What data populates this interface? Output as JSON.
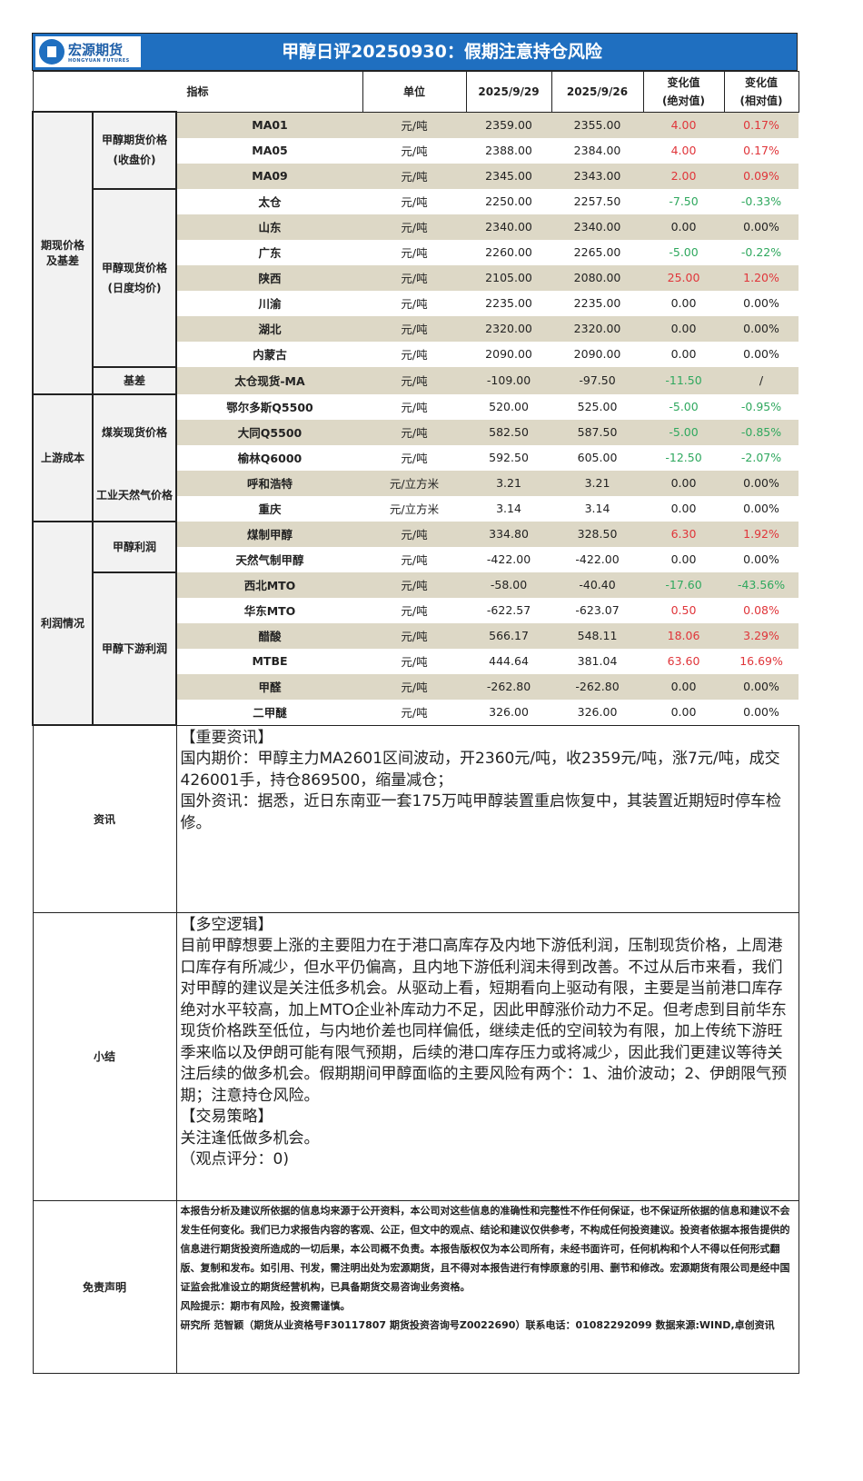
{
  "header": {
    "logo_cn": "宏源期货",
    "logo_en": "HONGYUAN FUTURES",
    "title": "甲醇日评20250930：假期注意持仓风险"
  },
  "columns": {
    "indicator": "指标",
    "unit": "单位",
    "date1": "2025/9/29",
    "date2": "2025/9/26",
    "abs": "变化值\n(绝对值)",
    "rel": "变化值\n(相对值)"
  },
  "groups": [
    {
      "label": "期现价格\n及基差",
      "span": 11
    },
    {
      "label": "上游成本",
      "span": 5
    },
    {
      "label": "利润情况",
      "span": 8
    }
  ],
  "subgroups": [
    {
      "label": "甲醇期货价格\n(收盘价)",
      "span": 3
    },
    {
      "label": "甲醇现货价格\n(日度均价)",
      "span": 7
    },
    {
      "label": "基差",
      "span": 1
    },
    {
      "label": "煤炭现货价格",
      "span": 3
    },
    {
      "label": "工业天然气价格",
      "span": 2
    },
    {
      "label": "甲醇利润",
      "span": 2
    },
    {
      "label": "甲醇下游利润",
      "span": 6
    }
  ],
  "rows": [
    {
      "name": "MA01",
      "unit": "元/吨",
      "v1": "2359.00",
      "v2": "2355.00",
      "abs": "4.00",
      "rel": "0.17%",
      "dir": "up"
    },
    {
      "name": "MA05",
      "unit": "元/吨",
      "v1": "2388.00",
      "v2": "2384.00",
      "abs": "4.00",
      "rel": "0.17%",
      "dir": "up"
    },
    {
      "name": "MA09",
      "unit": "元/吨",
      "v1": "2345.00",
      "v2": "2343.00",
      "abs": "2.00",
      "rel": "0.09%",
      "dir": "up"
    },
    {
      "name": "太仓",
      "unit": "元/吨",
      "v1": "2250.00",
      "v2": "2257.50",
      "abs": "-7.50",
      "rel": "-0.33%",
      "dir": "down"
    },
    {
      "name": "山东",
      "unit": "元/吨",
      "v1": "2340.00",
      "v2": "2340.00",
      "abs": "0.00",
      "rel": "0.00%",
      "dir": "flat"
    },
    {
      "name": "广东",
      "unit": "元/吨",
      "v1": "2260.00",
      "v2": "2265.00",
      "abs": "-5.00",
      "rel": "-0.22%",
      "dir": "down"
    },
    {
      "name": "陕西",
      "unit": "元/吨",
      "v1": "2105.00",
      "v2": "2080.00",
      "abs": "25.00",
      "rel": "1.20%",
      "dir": "up"
    },
    {
      "name": "川渝",
      "unit": "元/吨",
      "v1": "2235.00",
      "v2": "2235.00",
      "abs": "0.00",
      "rel": "0.00%",
      "dir": "flat"
    },
    {
      "name": "湖北",
      "unit": "元/吨",
      "v1": "2320.00",
      "v2": "2320.00",
      "abs": "0.00",
      "rel": "0.00%",
      "dir": "flat"
    },
    {
      "name": "内蒙古",
      "unit": "元/吨",
      "v1": "2090.00",
      "v2": "2090.00",
      "abs": "0.00",
      "rel": "0.00%",
      "dir": "flat"
    },
    {
      "name": "太仓现货-MA",
      "unit": "元/吨",
      "v1": "-109.00",
      "v2": "-97.50",
      "abs": "-11.50",
      "rel": "/",
      "dir": "down"
    },
    {
      "name": "鄂尔多斯Q5500",
      "unit": "元/吨",
      "v1": "520.00",
      "v2": "525.00",
      "abs": "-5.00",
      "rel": "-0.95%",
      "dir": "down"
    },
    {
      "name": "大同Q5500",
      "unit": "元/吨",
      "v1": "582.50",
      "v2": "587.50",
      "abs": "-5.00",
      "rel": "-0.85%",
      "dir": "down"
    },
    {
      "name": "榆林Q6000",
      "unit": "元/吨",
      "v1": "592.50",
      "v2": "605.00",
      "abs": "-12.50",
      "rel": "-2.07%",
      "dir": "down"
    },
    {
      "name": "呼和浩特",
      "unit": "元/立方米",
      "v1": "3.21",
      "v2": "3.21",
      "abs": "0.00",
      "rel": "0.00%",
      "dir": "flat"
    },
    {
      "name": "重庆",
      "unit": "元/立方米",
      "v1": "3.14",
      "v2": "3.14",
      "abs": "0.00",
      "rel": "0.00%",
      "dir": "flat"
    },
    {
      "name": "煤制甲醇",
      "unit": "元/吨",
      "v1": "334.80",
      "v2": "328.50",
      "abs": "6.30",
      "rel": "1.92%",
      "dir": "up"
    },
    {
      "name": "天然气制甲醇",
      "unit": "元/吨",
      "v1": "-422.00",
      "v2": "-422.00",
      "abs": "0.00",
      "rel": "0.00%",
      "dir": "flat"
    },
    {
      "name": "西北MTO",
      "unit": "元/吨",
      "v1": "-58.00",
      "v2": "-40.40",
      "abs": "-17.60",
      "rel": "-43.56%",
      "dir": "down"
    },
    {
      "name": "华东MTO",
      "unit": "元/吨",
      "v1": "-622.57",
      "v2": "-623.07",
      "abs": "0.50",
      "rel": "0.08%",
      "dir": "up"
    },
    {
      "name": "醋酸",
      "unit": "元/吨",
      "v1": "566.17",
      "v2": "548.11",
      "abs": "18.06",
      "rel": "3.29%",
      "dir": "up"
    },
    {
      "name": "MTBE",
      "unit": "元/吨",
      "v1": "444.64",
      "v2": "381.04",
      "abs": "63.60",
      "rel": "16.69%",
      "dir": "up"
    },
    {
      "name": "甲醛",
      "unit": "元/吨",
      "v1": "-262.80",
      "v2": "-262.80",
      "abs": "0.00",
      "rel": "0.00%",
      "dir": "flat"
    },
    {
      "name": "二甲醚",
      "unit": "元/吨",
      "v1": "326.00",
      "v2": "326.00",
      "abs": "0.00",
      "rel": "0.00%",
      "dir": "flat"
    }
  ],
  "colors": {
    "up": "#e0353a",
    "down": "#2fa85e",
    "shade": "#ddd8c6",
    "brand": "#1f6fc0"
  },
  "news": {
    "label": "资讯",
    "text": "【重要资讯】\n国内期价：甲醇主力MA2601区间波动，开2360元/吨，收2359元/吨，涨7元/吨，成交426001手，持仓869500，缩量减仓；\n国外资讯：据悉，近日东南亚一套175万吨甲醇装置重启恢复中，其装置近期短时停车检修。"
  },
  "summary": {
    "label": "小结",
    "text": "【多空逻辑】\n目前甲醇想要上涨的主要阻力在于港口高库存及内地下游低利润，压制现货价格，上周港口库存有所减少，但水平仍偏高，且内地下游低利润未得到改善。不过从后市来看，我们对甲醇的建议是关注低多机会。从驱动上看，短期看向上驱动有限，主要是当前港口库存绝对水平较高，加上MTO企业补库动力不足，因此甲醇涨价动力不足。但考虑到目前华东现货价格跌至低位，与内地价差也同样偏低，继续走低的空间较为有限，加上传统下游旺季来临以及伊朗可能有限气预期，后续的港口库存压力或将减少，因此我们更建议等待关注后续的做多机会。假期期间甲醇面临的主要风险有两个：1、油价波动；2、伊朗限气预期；注意持仓风险。\n【交易策略】\n关注逢低做多机会。\n（观点评分：0)"
  },
  "disclaimer": {
    "label": "免责声明",
    "text": "本报告分析及建议所依据的信息均来源于公开资料，本公司对这些信息的准确性和完整性不作任何保证，也不保证所依据的信息和建议不会发生任何变化。我们已力求报告内容的客观、公正，但文中的观点、结论和建议仅供参考，不构成任何投资建议。投资者依据本报告提供的信息进行期货投资所造成的一切后果，本公司概不负责。本报告版权仅为本公司所有，未经书面许可，任何机构和个人不得以任何形式翻版、复制和发布。如引用、刊发，需注明出处为宏源期货，且不得对本报告进行有悖原意的引用、删节和修改。宏源期货有限公司是经中国证监会批准设立的期货经营机构，已具备期货交易咨询业务资格。\n风险提示：期市有风险，投资需谨慎。\n研究所 范智颖（期货从业资格号F30117807 期货投资咨询号Z0022690）联系电话：01082292099 数据来源:WIND,卓创资讯"
  }
}
